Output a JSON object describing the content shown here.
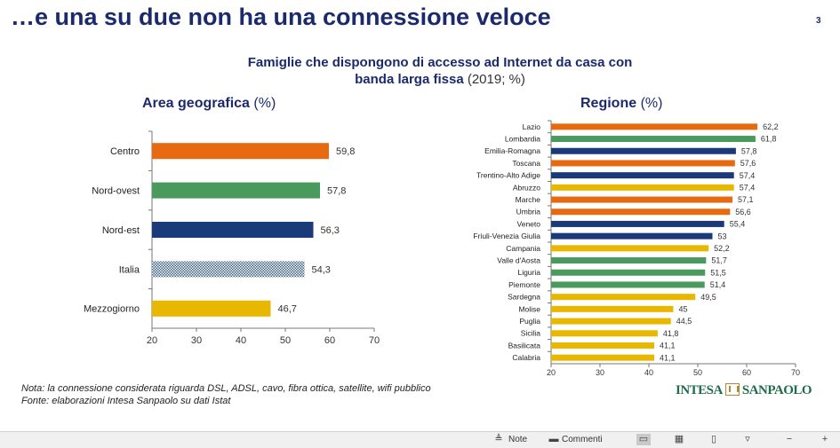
{
  "slide": {
    "title": "…e una su due non ha una connessione veloce",
    "page_number": "3",
    "subtitle_line1": "Famiglie che dispongono di accesso ad Internet da casa con",
    "subtitle_line2": "banda larga fissa",
    "subtitle_unit": "(2019; %)"
  },
  "chart_data": [
    {
      "type": "bar",
      "orientation": "horizontal",
      "title": "Area geografica",
      "title_unit": "(%)",
      "categories": [
        "Centro",
        "Nord-ovest",
        "Nord-est",
        "Italia",
        "Mezzogiorno"
      ],
      "values": [
        59.8,
        57.8,
        56.3,
        54.3,
        46.7
      ],
      "value_labels": [
        "59,8",
        "57,8",
        "56,3",
        "54,3",
        "46,7"
      ],
      "colors": [
        "#e86a10",
        "#4a9a5e",
        "#1a3a7a",
        "#9fb3c8",
        "#e8b800"
      ],
      "patterned": [
        false,
        false,
        false,
        true,
        false
      ],
      "xlim": [
        20,
        70
      ],
      "ticks": [
        "20",
        "30",
        "40",
        "50",
        "60",
        "70"
      ]
    },
    {
      "type": "bar",
      "orientation": "horizontal",
      "title": "Regione",
      "title_unit": "(%)",
      "categories": [
        "Lazio",
        "Lombardia",
        "Emilia-Romagna",
        "Toscana",
        "Trentino-Alto Adige",
        "Abruzzo",
        "Marche",
        "Umbria",
        "Veneto",
        "Friuli-Venezia Giulia",
        "Campania",
        "Valle d'Aosta",
        "Liguria",
        "Piemonte",
        "Sardegna",
        "Molise",
        "Puglia",
        "Sicilia",
        "Basilicata",
        "Calabria"
      ],
      "values": [
        62.2,
        61.8,
        57.8,
        57.6,
        57.4,
        57.4,
        57.1,
        56.6,
        55.4,
        53,
        52.2,
        51.7,
        51.5,
        51.4,
        49.5,
        45,
        44.5,
        41.8,
        41.1,
        41.1
      ],
      "value_labels": [
        "62,2",
        "61,8",
        "57,8",
        "57,6",
        "57,4",
        "57,4",
        "57,1",
        "56,6",
        "55,4",
        "53",
        "52,2",
        "51,7",
        "51,5",
        "51,4",
        "49,5",
        "45",
        "44,5",
        "41,8",
        "41,1",
        "41,1"
      ],
      "colors": [
        "#e86a10",
        "#4a9a5e",
        "#1a3a7a",
        "#e86a10",
        "#1a3a7a",
        "#e8b800",
        "#e86a10",
        "#e86a10",
        "#1a3a7a",
        "#1a3a7a",
        "#e8b800",
        "#4a9a5e",
        "#4a9a5e",
        "#4a9a5e",
        "#e8b800",
        "#e8b800",
        "#e8b800",
        "#e8b800",
        "#e8b800",
        "#e8b800"
      ],
      "xlim": [
        20,
        70
      ],
      "ticks": [
        "20",
        "30",
        "40",
        "50",
        "60",
        "70"
      ]
    }
  ],
  "notes": {
    "note": "Nota: la connessione considerata riguarda DSL, ADSL, cavo, fibra ottica, satellite, wifi pubblico",
    "source": "Fonte: elaborazioni Intesa Sanpaolo su dati Istat"
  },
  "logo": {
    "left": "INTESA",
    "right": "SANPAOLO"
  },
  "statusbar": {
    "notes_label": "Note",
    "comments_label": "Commenti"
  }
}
